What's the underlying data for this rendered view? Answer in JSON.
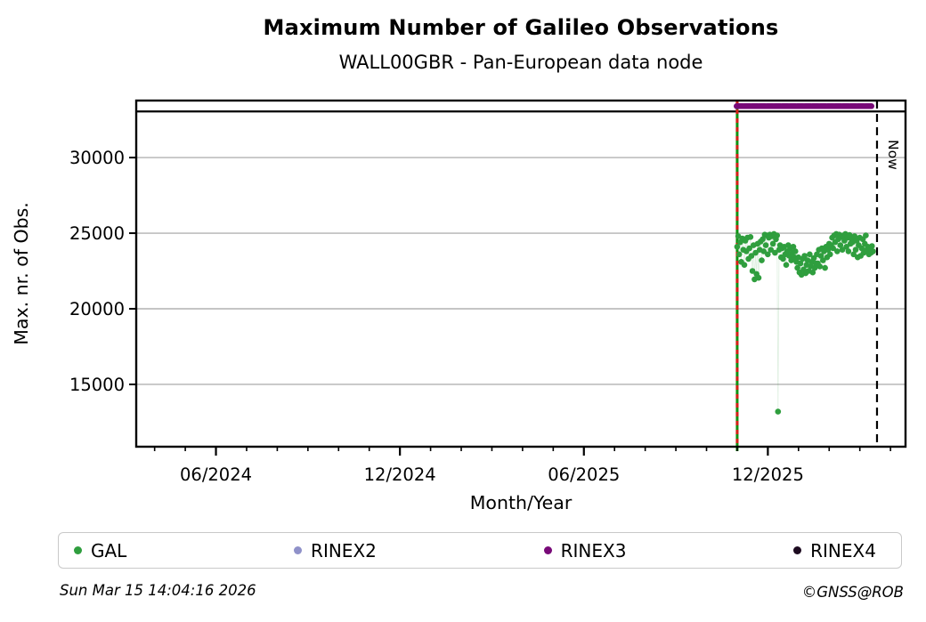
{
  "header": {
    "title": "Maximum Number of Galileo Observations",
    "subtitle": "WALL00GBR - Pan-European data node"
  },
  "chart_data": {
    "type": "scatter",
    "title": "Maximum Number of Galileo Observations",
    "subtitle": "WALL00GBR - Pan-European data node",
    "xlabel": "Month/Year",
    "ylabel": "Max. nr. of Obs.",
    "x_unit": "months since 2024-01-01 (e.g. 5 = 06/2024)",
    "x_range": [
      2.4,
      27.49
    ],
    "y_range": [
      10880,
      33770
    ],
    "y_ticks": [
      15000,
      20000,
      25000,
      30000
    ],
    "x_major_ticks": [
      {
        "t": 5,
        "label": "06/2024"
      },
      {
        "t": 11,
        "label": "12/2024"
      },
      {
        "t": 17,
        "label": "06/2025"
      },
      {
        "t": 23,
        "label": "12/2025"
      }
    ],
    "x_minor_ticks": {
      "start": 3,
      "end": 27,
      "step": 1
    },
    "grid": "horizontal",
    "grid_color": "#b2b2b2",
    "reference_line": {
      "value": 33050,
      "color": "#000000"
    },
    "now_marker": {
      "t": 26.56,
      "label": "Now",
      "color": "#000000",
      "style": "dashed"
    },
    "data_start_line": {
      "t": 22.0,
      "color_solid": "#119111",
      "color_dash": "#d42016",
      "style": "solid+red-dashes"
    },
    "series": [
      {
        "name": "GAL",
        "color": "#2f9e3e",
        "marker": "dot",
        "x_encoding": {
          "t0": 22.0,
          "dt": 0.0333
        },
        "values": [
          24100,
          24800,
          23600,
          24400,
          23100,
          24650,
          23900,
          22900,
          24500,
          23800,
          24700,
          23300,
          24000,
          24750,
          23500,
          22500,
          24200,
          21950,
          23700,
          22300,
          24300,
          22050,
          23900,
          24450,
          23200,
          24600,
          23800,
          24900,
          24200,
          24850,
          23600,
          24700,
          24900,
          23900,
          24800,
          24300,
          24950,
          23700,
          24600,
          24850,
          13200,
          23900,
          24200,
          23400,
          24000,
          23300,
          24100,
          23600,
          22900,
          23800,
          24200,
          23500,
          24000,
          23200,
          23700,
          24100,
          23400,
          23800,
          23100,
          22700,
          23400,
          22400,
          23000,
          22250,
          23300,
          22600,
          23500,
          22350,
          22900,
          23200,
          22500,
          23600,
          22800,
          23100,
          22400,
          23350,
          22700,
          23000,
          23600,
          23000,
          23900,
          22800,
          23500,
          24000,
          23200,
          23800,
          22700,
          24100,
          23400,
          23900,
          24300,
          23600,
          24200,
          24700,
          24000,
          24850,
          24400,
          24950,
          23800,
          24600,
          24900,
          24200,
          24750,
          23900,
          24850,
          24500,
          24950,
          24100,
          24700,
          23800,
          24880,
          24300,
          24600,
          24400,
          23600,
          24800,
          23900,
          24500,
          23400,
          24200,
          24700,
          23500,
          24000,
          24600,
          23700,
          24300,
          24850,
          23900,
          24100,
          23600,
          24000,
          23700,
          24150,
          23800
        ]
      },
      {
        "name": "RINEX2",
        "color": "#8f91c9",
        "marker": "dot",
        "values": []
      },
      {
        "name": "RINEX3",
        "color": "#780a78",
        "marker": "thick-dotted-line",
        "constant_value": 33400,
        "t_start": 21.98,
        "t_end": 26.42
      },
      {
        "name": "RINEX4",
        "color": "#1d0b20",
        "marker": "dot",
        "values": []
      }
    ]
  },
  "legend": {
    "items": [
      {
        "label": "GAL",
        "color": "#2f9e3e"
      },
      {
        "label": "RINEX2",
        "color": "#8f91c9"
      },
      {
        "label": "RINEX3",
        "color": "#780a78"
      },
      {
        "label": "RINEX4",
        "color": "#1d0b20"
      }
    ]
  },
  "footer": {
    "timestamp": "Sun Mar 15 14:04:16 2026",
    "credit": "©GNSS@ROB"
  }
}
